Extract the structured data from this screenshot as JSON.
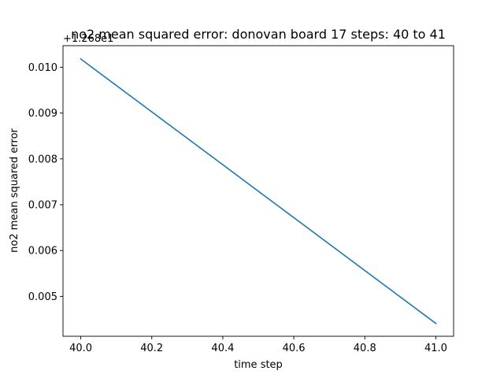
{
  "chart_data": {
    "type": "line",
    "title": "no2 mean squared error: donovan board 17 steps: 40 to 41",
    "xlabel": "time step",
    "ylabel": "no2 mean squared error",
    "y_offset_label": "+1.268e1",
    "xlim": [
      39.95,
      41.05
    ],
    "ylim": [
      0.00413,
      0.01047
    ],
    "x_ticks": [
      40.0,
      40.2,
      40.4,
      40.6,
      40.8,
      41.0
    ],
    "x_tick_labels": [
      "40.0",
      "40.2",
      "40.4",
      "40.6",
      "40.8",
      "41.0"
    ],
    "y_ticks": [
      0.005,
      0.006,
      0.007,
      0.008,
      0.009,
      0.01
    ],
    "y_tick_labels": [
      "0.005",
      "0.006",
      "0.007",
      "0.008",
      "0.009",
      "0.010"
    ],
    "grid": false,
    "series": [
      {
        "color": "#1f77b4",
        "x": [
          40.0,
          41.0
        ],
        "y": [
          0.01018,
          0.00441
        ]
      }
    ]
  }
}
